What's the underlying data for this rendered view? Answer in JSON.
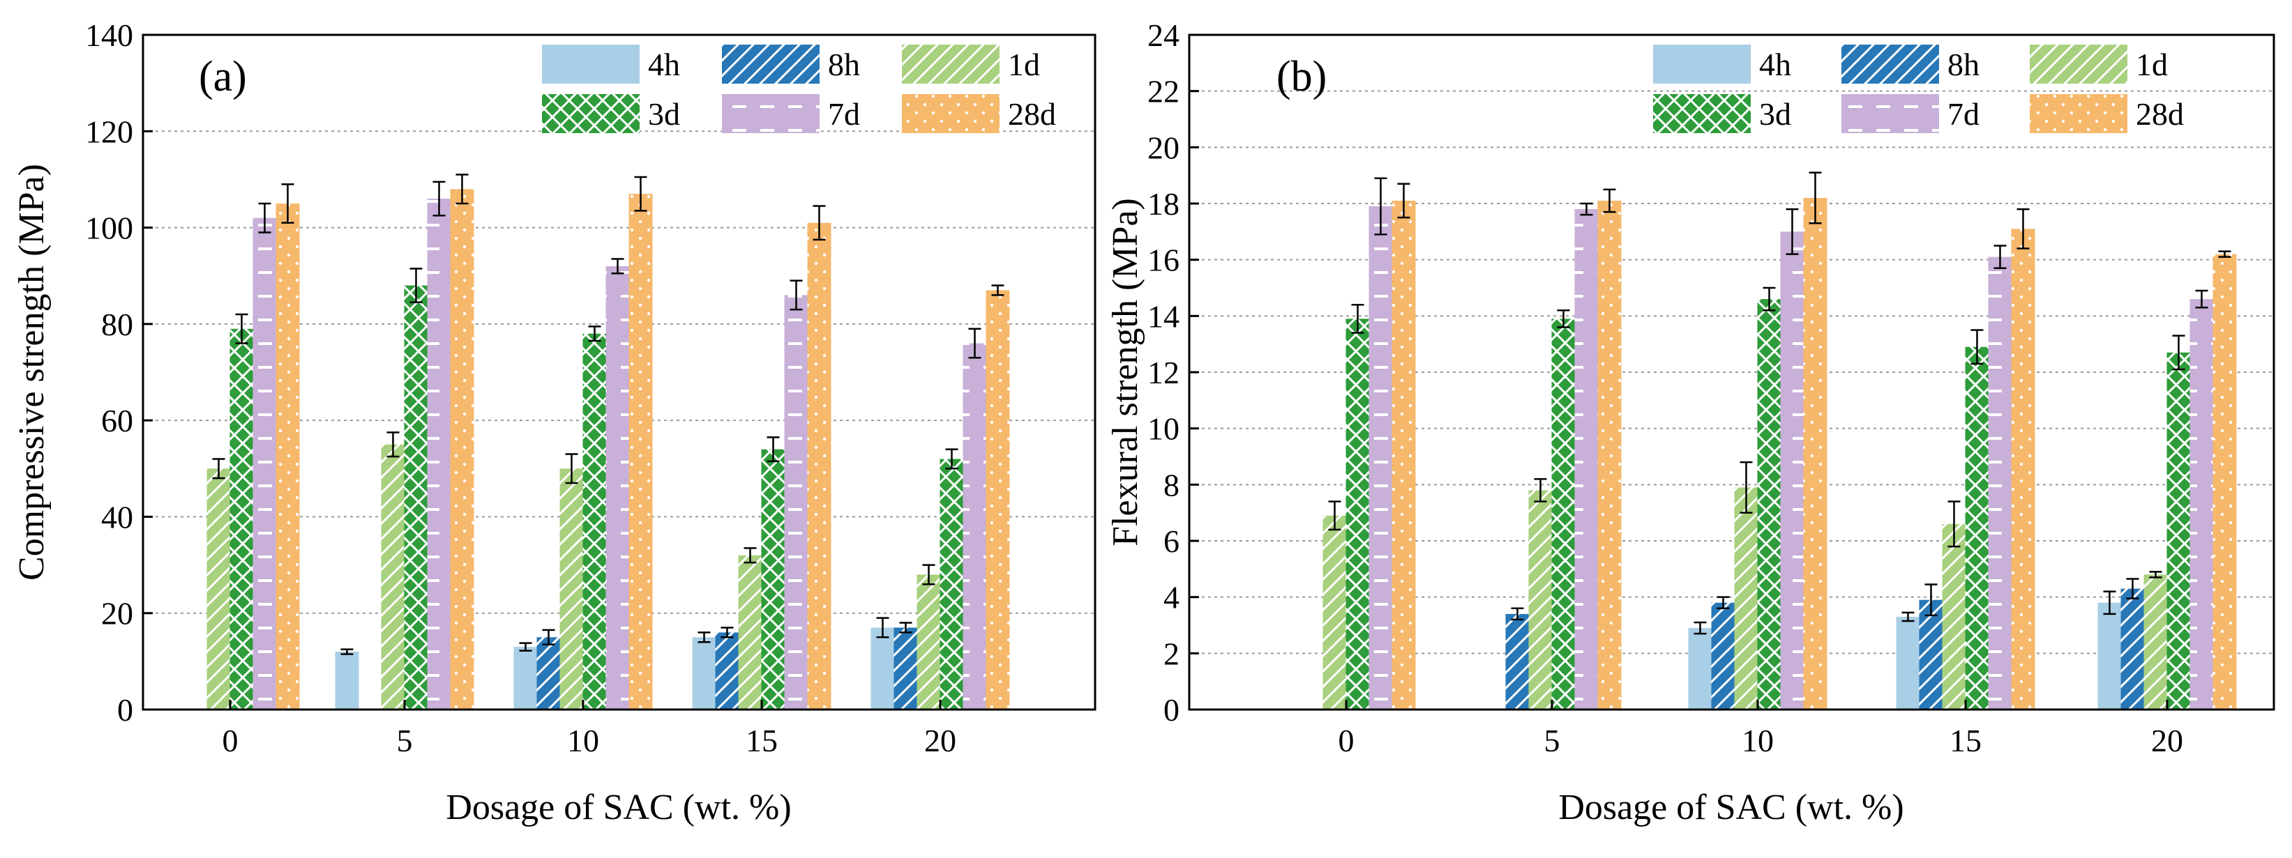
{
  "chart_data": [
    {
      "type": "bar",
      "panel_label": "(a)",
      "xlabel": "Dosage of SAC (wt. %)",
      "ylabel": "Compressive strength (MPa)",
      "ylim": [
        0,
        140
      ],
      "yticks": [
        "0",
        "20",
        "40",
        "60",
        "80",
        "100",
        "120",
        "140"
      ],
      "categories": [
        "0",
        "5",
        "10",
        "15",
        "20"
      ],
      "grid": true,
      "legend_position": "top-right",
      "series": [
        {
          "name": "4h",
          "values": [
            null,
            12,
            13,
            15,
            17
          ],
          "errors": [
            0,
            0.5,
            0.8,
            1,
            2
          ]
        },
        {
          "name": "8h",
          "values": [
            null,
            null,
            15,
            16,
            17
          ],
          "errors": [
            0,
            0,
            1.5,
            1,
            1
          ]
        },
        {
          "name": "1d",
          "values": [
            50,
            55,
            50,
            32,
            28
          ],
          "errors": [
            2,
            2.5,
            3,
            1.5,
            2
          ]
        },
        {
          "name": "3d",
          "values": [
            79,
            88,
            78,
            54,
            52
          ],
          "errors": [
            3,
            3.5,
            1.5,
            2.5,
            2
          ]
        },
        {
          "name": "7d",
          "values": [
            102,
            106,
            92,
            86,
            76
          ],
          "errors": [
            3,
            3.5,
            1.5,
            3,
            3
          ]
        },
        {
          "name": "28d",
          "values": [
            105,
            108,
            107,
            101,
            87
          ],
          "errors": [
            4,
            3,
            3.5,
            3.5,
            1
          ]
        }
      ]
    },
    {
      "type": "bar",
      "panel_label": "(b)",
      "xlabel": "Dosage of SAC (wt. %)",
      "ylabel": "Flexural strength (MPa)",
      "ylim": [
        0,
        24
      ],
      "yticks": [
        "0",
        "2",
        "4",
        "6",
        "8",
        "10",
        "12",
        "14",
        "16",
        "18",
        "20",
        "22",
        "24"
      ],
      "categories": [
        "0",
        "5",
        "10",
        "15",
        "20"
      ],
      "grid": true,
      "legend_position": "top-right",
      "series": [
        {
          "name": "4h",
          "values": [
            null,
            null,
            2.9,
            3.3,
            3.8
          ],
          "errors": [
            0,
            0,
            0.2,
            0.15,
            0.4
          ]
        },
        {
          "name": "8h",
          "values": [
            null,
            3.4,
            3.8,
            3.9,
            4.3
          ],
          "errors": [
            0,
            0.2,
            0.2,
            0.55,
            0.35
          ]
        },
        {
          "name": "1d",
          "values": [
            6.9,
            7.8,
            7.9,
            6.6,
            4.8
          ],
          "errors": [
            0.5,
            0.4,
            0.9,
            0.8,
            0.1
          ]
        },
        {
          "name": "3d",
          "values": [
            13.9,
            13.9,
            14.6,
            12.9,
            12.7
          ],
          "errors": [
            0.5,
            0.3,
            0.4,
            0.6,
            0.6
          ]
        },
        {
          "name": "7d",
          "values": [
            17.9,
            17.8,
            17.0,
            16.1,
            14.6
          ],
          "errors": [
            1.0,
            0.2,
            0.8,
            0.4,
            0.3
          ]
        },
        {
          "name": "28d",
          "values": [
            18.1,
            18.1,
            18.2,
            17.1,
            16.2
          ],
          "errors": [
            0.6,
            0.4,
            0.9,
            0.7,
            0.1
          ]
        }
      ]
    }
  ],
  "colors": {
    "4h": "#a9cfe6",
    "8h": "#2878b8",
    "1d": "#a8d07e",
    "3d": "#2e9c3a",
    "7d": "#c8b0d8",
    "28d": "#f6b86b"
  }
}
